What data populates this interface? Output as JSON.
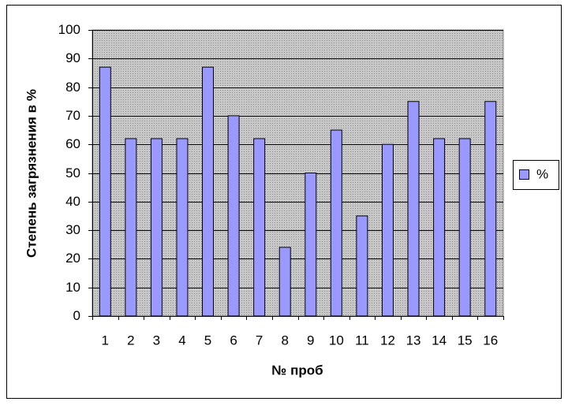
{
  "chart_data": {
    "type": "bar",
    "x_label": "№ проб",
    "y_label": "Степень загрязнения в %",
    "categories": [
      "1",
      "2",
      "3",
      "4",
      "5",
      "6",
      "7",
      "8",
      "9",
      "10",
      "11",
      "12",
      "13",
      "14",
      "15",
      "16"
    ],
    "series": [
      {
        "name": "%",
        "color": "#9999ff",
        "values": [
          87,
          62,
          62,
          62,
          87,
          70,
          62,
          24,
          50,
          65,
          35,
          60,
          75,
          62,
          62,
          75
        ]
      }
    ],
    "ylim": [
      0,
      100
    ],
    "yticks": [
      0,
      10,
      20,
      30,
      40,
      50,
      60,
      70,
      80,
      90,
      100
    ],
    "grid": true,
    "legend": "right"
  }
}
